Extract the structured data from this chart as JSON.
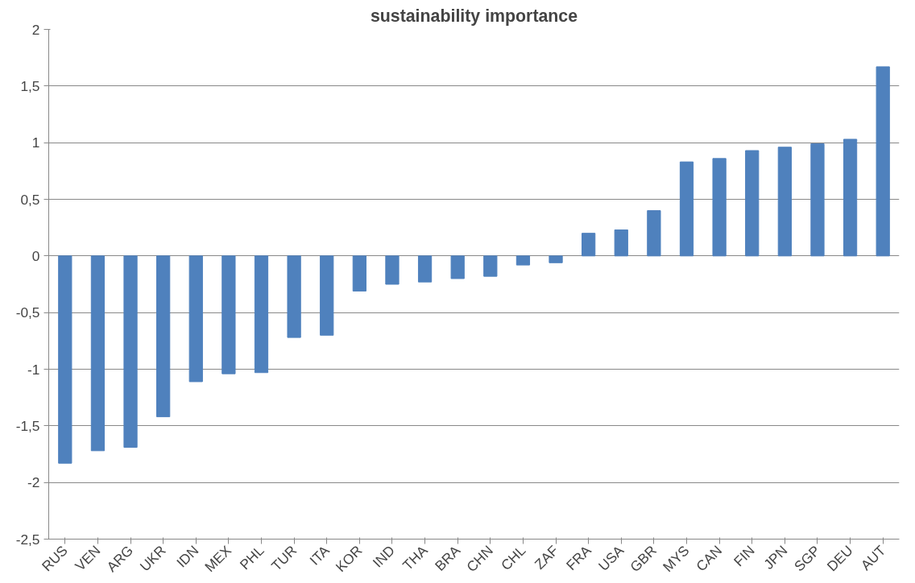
{
  "chart_data": {
    "type": "bar",
    "title": "sustainability importance",
    "categories": [
      "RUS",
      "VEN",
      "ARG",
      "UKR",
      "IDN",
      "MEX",
      "PHL",
      "TUR",
      "ITA",
      "KOR",
      "IND",
      "THA",
      "BRA",
      "CHN",
      "CHL",
      "ZAF",
      "FRA",
      "USA",
      "GBR",
      "MYS",
      "CAN",
      "FIN",
      "JPN",
      "SGP",
      "DEU",
      "AUT"
    ],
    "values": [
      -1.83,
      -1.72,
      -1.69,
      -1.42,
      -1.11,
      -1.04,
      -1.03,
      -0.72,
      -0.7,
      -0.31,
      -0.25,
      -0.23,
      -0.2,
      -0.18,
      -0.08,
      -0.06,
      0.2,
      0.23,
      0.4,
      0.83,
      0.86,
      0.93,
      0.96,
      0.99,
      1.03,
      1.67
    ],
    "color": "#4f81bd",
    "ylim": [
      -2.5,
      2
    ],
    "yticks": [
      {
        "value": -2.5,
        "label": "-2,5"
      },
      -2,
      {
        "value": -1.5,
        "label": "-1,5"
      },
      -1,
      {
        "value": -0.5,
        "label": "-0,5"
      },
      0,
      {
        "value": 0.5,
        "label": "0,5"
      },
      1,
      {
        "value": 1.5,
        "label": "1,5"
      },
      2
    ],
    "grid": "y"
  }
}
